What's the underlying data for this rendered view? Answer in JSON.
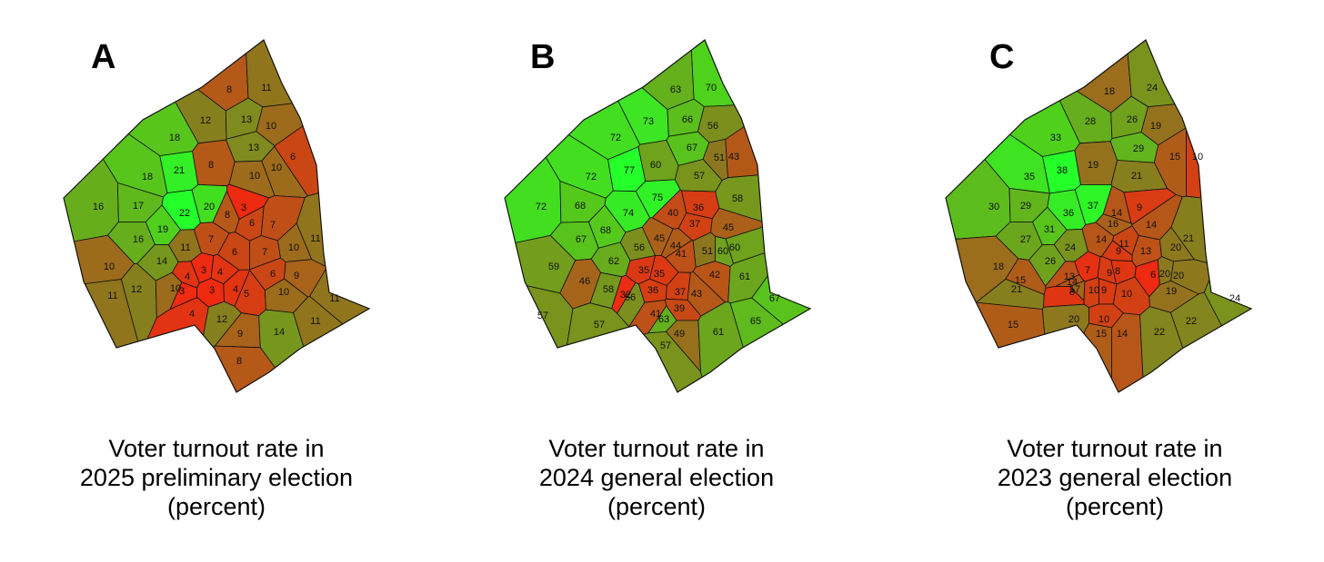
{
  "colors": {
    "low": "#ee2a10",
    "mid": "#8a7a1e",
    "high": "#4ed21c",
    "peak": "#25ff2a",
    "border": "#111111"
  },
  "maps": [
    {
      "letter": "A",
      "caption": [
        "Voter turnout rate in",
        "2025 preliminary election",
        "(percent)"
      ],
      "scale": [
        3,
        22
      ],
      "districts": [
        {
          "id": "d1",
          "v": 8
        },
        {
          "id": "d2",
          "v": 11
        },
        {
          "id": "d3",
          "v": 12
        },
        {
          "id": "d4",
          "v": 13
        },
        {
          "id": "d5",
          "v": 10
        },
        {
          "id": "d6",
          "v": 18
        },
        {
          "id": "d7",
          "v": 13
        },
        {
          "id": "d8",
          "v": 6
        },
        {
          "id": "d9",
          "v": 8
        },
        {
          "id": "d10",
          "v": 10
        },
        {
          "id": "d11",
          "v": 21
        },
        {
          "id": "d12",
          "v": 10
        },
        {
          "id": "d13",
          "v": 18
        },
        {
          "id": "d14",
          "v": 16
        },
        {
          "id": "d15",
          "v": 17
        },
        {
          "id": "d16",
          "v": 20
        },
        {
          "id": "d17",
          "v": 22
        },
        {
          "id": "d18",
          "v": 8
        },
        {
          "id": "d19",
          "v": 3
        },
        {
          "id": "d20",
          "v": 6
        },
        {
          "id": "d21",
          "v": 7
        },
        {
          "id": "d22",
          "v": 19
        },
        {
          "id": "d23",
          "v": 16
        },
        {
          "id": "d24",
          "v": 11
        },
        {
          "id": "d25",
          "v": 7
        },
        {
          "id": "d26",
          "v": 6
        },
        {
          "id": "d27",
          "v": 7
        },
        {
          "id": "d28",
          "v": 10
        },
        {
          "id": "d29",
          "v": 11
        },
        {
          "id": "d30",
          "v": 14
        },
        {
          "id": "d31",
          "v": 10
        },
        {
          "id": "d32",
          "v": 4
        },
        {
          "id": "d33",
          "v": 3
        },
        {
          "id": "d34",
          "v": 4
        },
        {
          "id": "d35",
          "v": 6
        },
        {
          "id": "d36",
          "v": 9
        },
        {
          "id": "d37",
          "v": 12
        },
        {
          "id": "d38",
          "v": 3
        },
        {
          "id": "d39",
          "v": 3
        },
        {
          "id": "d40",
          "v": 5
        },
        {
          "id": "d41",
          "v": 10
        },
        {
          "id": "d42",
          "v": 10
        },
        {
          "id": "d43",
          "v": 4
        },
        {
          "id": "d44",
          "v": 4
        },
        {
          "id": "d45",
          "v": 12
        },
        {
          "id": "d46",
          "v": 11
        },
        {
          "id": "d47",
          "v": 9
        },
        {
          "id": "d48",
          "v": 14
        },
        {
          "id": "d49",
          "v": 11
        },
        {
          "id": "d50",
          "v": 11
        },
        {
          "id": "d51",
          "v": 8
        }
      ]
    },
    {
      "letter": "B",
      "caption": [
        "Voter turnout rate in",
        "2024 general election",
        "(percent)"
      ],
      "scale": [
        31,
        77
      ],
      "districts": [
        {
          "id": "d1",
          "v": 63
        },
        {
          "id": "d2",
          "v": 70
        },
        {
          "id": "d3",
          "v": 73
        },
        {
          "id": "d4",
          "v": 66
        },
        {
          "id": "d5",
          "v": 56
        },
        {
          "id": "d6",
          "v": 72
        },
        {
          "id": "d7",
          "v": 67
        },
        {
          "id": "d8",
          "v": 51
        },
        {
          "id": "d9",
          "v": 60
        },
        {
          "id": "d10",
          "v": 57
        },
        {
          "id": "d11",
          "v": 77
        },
        {
          "id": "d12",
          "v": 43
        },
        {
          "id": "d13",
          "v": 72
        },
        {
          "id": "d14",
          "v": 72
        },
        {
          "id": "d15",
          "v": 68
        },
        {
          "id": "d16",
          "v": 75
        },
        {
          "id": "d17",
          "v": 74
        },
        {
          "id": "d18",
          "v": 40
        },
        {
          "id": "d19",
          "v": 36
        },
        {
          "id": "d20",
          "v": 37
        },
        {
          "id": "d21",
          "v": 45
        },
        {
          "id": "d22",
          "v": 68
        },
        {
          "id": "d23",
          "v": 67
        },
        {
          "id": "d24",
          "v": 56
        },
        {
          "id": "d25",
          "v": 45
        },
        {
          "id": "d26",
          "v": 44
        },
        {
          "id": "d27",
          "v": 41
        },
        {
          "id": "d28",
          "v": 51
        },
        {
          "id": "d29",
          "v": 60
        },
        {
          "id": "d30",
          "v": 62
        },
        {
          "id": "d31",
          "v": 46
        },
        {
          "id": "d32",
          "v": 32
        },
        {
          "id": "d33",
          "v": 35
        },
        {
          "id": "d34",
          "v": 35
        },
        {
          "id": "d35",
          "v": 42
        },
        {
          "id": "d36",
          "v": 61
        },
        {
          "id": "d37",
          "v": 59
        },
        {
          "id": "d38",
          "v": 36
        },
        {
          "id": "d39",
          "v": 37
        },
        {
          "id": "d40",
          "v": 43
        },
        {
          "id": "d41",
          "v": 57
        },
        {
          "id": "d42",
          "v": 58
        },
        {
          "id": "d43",
          "v": 39
        },
        {
          "id": "d44",
          "v": 41
        },
        {
          "id": "d45",
          "v": 63
        },
        {
          "id": "d46",
          "v": 57
        },
        {
          "id": "d47",
          "v": 49
        },
        {
          "id": "d48",
          "v": 61
        },
        {
          "id": "d49",
          "v": 65
        },
        {
          "id": "d50",
          "v": 67
        },
        {
          "id": "d51",
          "v": 57
        },
        {
          "id": "d52",
          "v": 58
        },
        {
          "id": "d53",
          "v": 60
        },
        {
          "id": "d54",
          "v": 56
        }
      ]
    },
    {
      "letter": "C",
      "caption": [
        "Voter turnout rate in",
        "2023 general election",
        "(percent)"
      ],
      "scale": [
        6,
        38
      ],
      "districts": [
        {
          "id": "d1",
          "v": 18
        },
        {
          "id": "d2",
          "v": 24
        },
        {
          "id": "d3",
          "v": 28
        },
        {
          "id": "d4",
          "v": 26
        },
        {
          "id": "d5",
          "v": 19
        },
        {
          "id": "d6",
          "v": 33
        },
        {
          "id": "d7",
          "v": 29
        },
        {
          "id": "d8",
          "v": 15
        },
        {
          "id": "d9",
          "v": 19
        },
        {
          "id": "d10",
          "v": 21
        },
        {
          "id": "d11",
          "v": 38
        },
        {
          "id": "d12",
          "v": 10
        },
        {
          "id": "d13",
          "v": 35
        },
        {
          "id": "d14",
          "v": 30
        },
        {
          "id": "d15",
          "v": 29
        },
        {
          "id": "d16",
          "v": 37
        },
        {
          "id": "d17",
          "v": 36
        },
        {
          "id": "d18",
          "v": 14
        },
        {
          "id": "d19",
          "v": 9
        },
        {
          "id": "d20",
          "v": 16
        },
        {
          "id": "d21",
          "v": 14
        },
        {
          "id": "d22",
          "v": 31
        },
        {
          "id": "d23",
          "v": 27
        },
        {
          "id": "d24",
          "v": 24
        },
        {
          "id": "d25",
          "v": 14
        },
        {
          "id": "d26",
          "v": 9
        },
        {
          "id": "d27",
          "v": 11
        },
        {
          "id": "d28",
          "v": 13
        },
        {
          "id": "d29",
          "v": 20
        },
        {
          "id": "d30",
          "v": 26
        },
        {
          "id": "d31",
          "v": 14
        },
        {
          "id": "d32",
          "v": 13
        },
        {
          "id": "d33",
          "v": 7
        },
        {
          "id": "d34",
          "v": 9
        },
        {
          "id": "d35",
          "v": 6
        },
        {
          "id": "d36",
          "v": 20
        },
        {
          "id": "d37",
          "v": 21
        },
        {
          "id": "d38",
          "v": 8
        },
        {
          "id": "d39",
          "v": 10
        },
        {
          "id": "d40",
          "v": 10
        },
        {
          "id": "d41",
          "v": 17
        },
        {
          "id": "d42",
          "v": 15
        },
        {
          "id": "d43",
          "v": 9
        },
        {
          "id": "d44",
          "v": 10
        },
        {
          "id": "d45",
          "v": 20
        },
        {
          "id": "d46",
          "v": 15
        },
        {
          "id": "d47",
          "v": 14
        },
        {
          "id": "d48",
          "v": 22
        },
        {
          "id": "d49",
          "v": 22
        },
        {
          "id": "d50",
          "v": 24
        },
        {
          "id": "d51",
          "v": 15
        },
        {
          "id": "d52",
          "v": 18
        },
        {
          "id": "d53",
          "v": 21
        },
        {
          "id": "d54",
          "v": 20
        },
        {
          "id": "d55",
          "v": 19
        },
        {
          "id": "d56",
          "v": 8
        }
      ]
    }
  ]
}
